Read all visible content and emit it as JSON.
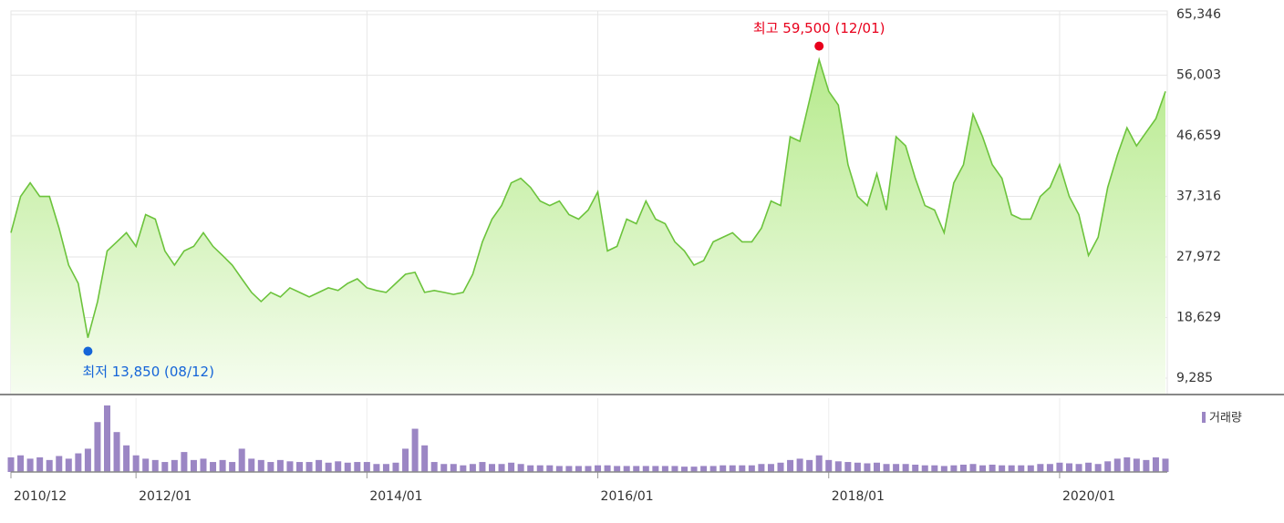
{
  "chart_data": [
    {
      "type": "area",
      "x": [
        "2010/12",
        "2011/01",
        "2011/02",
        "2011/03",
        "2011/04",
        "2011/05",
        "2011/06",
        "2011/07",
        "2011/08",
        "2011/09",
        "2011/10",
        "2011/11",
        "2011/12",
        "2012/01",
        "2012/02",
        "2012/03",
        "2012/04",
        "2012/05",
        "2012/06",
        "2012/07",
        "2012/08",
        "2012/09",
        "2012/10",
        "2012/11",
        "2012/12",
        "2013/01",
        "2013/02",
        "2013/03",
        "2013/04",
        "2013/05",
        "2013/06",
        "2013/07",
        "2013/08",
        "2013/09",
        "2013/10",
        "2013/11",
        "2013/12",
        "2014/01",
        "2014/02",
        "2014/03",
        "2014/04",
        "2014/05",
        "2014/06",
        "2014/07",
        "2014/08",
        "2014/09",
        "2014/10",
        "2014/11",
        "2014/12",
        "2015/01",
        "2015/02",
        "2015/03",
        "2015/04",
        "2015/05",
        "2015/06",
        "2015/07",
        "2015/08",
        "2015/09",
        "2015/10",
        "2015/11",
        "2015/12",
        "2016/01",
        "2016/02",
        "2016/03",
        "2016/04",
        "2016/05",
        "2016/06",
        "2016/07",
        "2016/08",
        "2016/09",
        "2016/10",
        "2016/11",
        "2016/12",
        "2017/01",
        "2017/02",
        "2017/03",
        "2017/04",
        "2017/05",
        "2017/06",
        "2017/07",
        "2017/08",
        "2017/09",
        "2017/10",
        "2017/11",
        "2017/12",
        "2018/01",
        "2018/02",
        "2018/03",
        "2018/04",
        "2018/05",
        "2018/06",
        "2018/07",
        "2018/08",
        "2018/09",
        "2018/10",
        "2018/11",
        "2018/12",
        "2019/01",
        "2019/02",
        "2019/03",
        "2019/04",
        "2019/05",
        "2019/06",
        "2019/07",
        "2019/08",
        "2019/09",
        "2019/10",
        "2019/11",
        "2019/12",
        "2020/01",
        "2020/02",
        "2020/03",
        "2020/04",
        "2020/05",
        "2020/06",
        "2020/07",
        "2020/08",
        "2020/09",
        "2020/10",
        "2020/11",
        "2020/12"
      ],
      "series": [
        {
          "color": "#6cc33c",
          "values": [
            31700,
            37300,
            39400,
            37300,
            37300,
            32400,
            26700,
            23900,
            15500,
            21100,
            28900,
            30300,
            31700,
            29600,
            34500,
            33800,
            28900,
            26700,
            28900,
            29600,
            31700,
            29600,
            28200,
            26700,
            24600,
            22500,
            21100,
            22500,
            21800,
            23200,
            22500,
            21800,
            22500,
            23200,
            22800,
            23900,
            24600,
            23200,
            22800,
            22500,
            23900,
            25300,
            25600,
            22500,
            22800,
            22500,
            22200,
            22500,
            25300,
            30300,
            33800,
            35900,
            39400,
            40100,
            38700,
            36600,
            35900,
            36600,
            34500,
            33800,
            35200,
            38000,
            28900,
            29600,
            33800,
            33100,
            36600,
            33800,
            33100,
            30300,
            28900,
            26700,
            27400,
            30300,
            31000,
            31700,
            30300,
            30300,
            32400,
            36600,
            35900,
            46500,
            45800,
            52100,
            58400,
            53500,
            51400,
            42200,
            37300,
            35900,
            40800,
            35200,
            46500,
            45100,
            40100,
            35900,
            35200,
            31700,
            39400,
            42200,
            50000,
            46500,
            42200,
            40100,
            34500,
            33800,
            33800,
            37300,
            38700,
            42200,
            37300,
            34500,
            28200,
            31000,
            38700,
            43700,
            47900,
            45100,
            47200,
            49300,
            53500
          ]
        }
      ],
      "ylim": [
        6750,
        65910
      ],
      "yticks": [
        {
          "value": 9285,
          "label": "9,285"
        },
        {
          "value": 18629,
          "label": "18,629"
        },
        {
          "value": 27972,
          "label": "27,972"
        },
        {
          "value": 37316,
          "label": "37,316"
        },
        {
          "value": 46659,
          "label": "46,659"
        },
        {
          "value": 56003,
          "label": "56,003"
        },
        {
          "value": 65346,
          "label": "65,346"
        }
      ],
      "xticks": [
        "2010/12",
        "2012/01",
        "2014/01",
        "2016/01",
        "2018/01",
        "2020/01"
      ],
      "grid": true,
      "annotations": [
        {
          "text": "최고 59,500 (12/01)",
          "x": "2017/12",
          "value": 59500,
          "color": "#e8001c",
          "position": "above"
        },
        {
          "text": "최저 13,850 (08/12)",
          "x": "2011/08",
          "value": 13850,
          "color": "#1565d8",
          "position": "below"
        }
      ]
    },
    {
      "type": "bar",
      "x": [
        "2010/12",
        "2011/01",
        "2011/02",
        "2011/03",
        "2011/04",
        "2011/05",
        "2011/06",
        "2011/07",
        "2011/08",
        "2011/09",
        "2011/10",
        "2011/11",
        "2011/12",
        "2012/01",
        "2012/02",
        "2012/03",
        "2012/04",
        "2012/05",
        "2012/06",
        "2012/07",
        "2012/08",
        "2012/09",
        "2012/10",
        "2012/11",
        "2012/12",
        "2013/01",
        "2013/02",
        "2013/03",
        "2013/04",
        "2013/05",
        "2013/06",
        "2013/07",
        "2013/08",
        "2013/09",
        "2013/10",
        "2013/11",
        "2013/12",
        "2014/01",
        "2014/02",
        "2014/03",
        "2014/04",
        "2014/05",
        "2014/06",
        "2014/07",
        "2014/08",
        "2014/09",
        "2014/10",
        "2014/11",
        "2014/12",
        "2015/01",
        "2015/02",
        "2015/03",
        "2015/04",
        "2015/05",
        "2015/06",
        "2015/07",
        "2015/08",
        "2015/09",
        "2015/10",
        "2015/11",
        "2015/12",
        "2016/01",
        "2016/02",
        "2016/03",
        "2016/04",
        "2016/05",
        "2016/06",
        "2016/07",
        "2016/08",
        "2016/09",
        "2016/10",
        "2016/11",
        "2016/12",
        "2017/01",
        "2017/02",
        "2017/03",
        "2017/04",
        "2017/05",
        "2017/06",
        "2017/07",
        "2017/08",
        "2017/09",
        "2017/10",
        "2017/11",
        "2017/12",
        "2018/01",
        "2018/02",
        "2018/03",
        "2018/04",
        "2018/05",
        "2018/06",
        "2018/07",
        "2018/08",
        "2018/09",
        "2018/10",
        "2018/11",
        "2018/12",
        "2019/01",
        "2019/02",
        "2019/03",
        "2019/04",
        "2019/05",
        "2019/06",
        "2019/07",
        "2019/08",
        "2019/09",
        "2019/10",
        "2019/11",
        "2019/12",
        "2020/01",
        "2020/02",
        "2020/03",
        "2020/04",
        "2020/05",
        "2020/06",
        "2020/07",
        "2020/08",
        "2020/09",
        "2020/10",
        "2020/11",
        "2020/12"
      ],
      "series": [
        {
          "name": "거래량",
          "color": "#9b86c4",
          "values": [
            22,
            25,
            20,
            22,
            18,
            24,
            20,
            28,
            35,
            75,
            100,
            60,
            40,
            25,
            20,
            18,
            15,
            18,
            30,
            18,
            20,
            15,
            18,
            15,
            35,
            20,
            18,
            15,
            18,
            16,
            15,
            15,
            18,
            14,
            16,
            14,
            15,
            15,
            12,
            12,
            14,
            35,
            65,
            40,
            15,
            12,
            12,
            10,
            12,
            15,
            12,
            12,
            14,
            12,
            10,
            10,
            10,
            9,
            9,
            9,
            9,
            10,
            10,
            9,
            9,
            9,
            9,
            9,
            9,
            9,
            8,
            8,
            9,
            9,
            10,
            10,
            10,
            10,
            12,
            12,
            14,
            18,
            20,
            18,
            25,
            18,
            16,
            15,
            14,
            13,
            14,
            12,
            12,
            12,
            11,
            10,
            10,
            9,
            10,
            11,
            12,
            10,
            11,
            10,
            10,
            10,
            10,
            12,
            12,
            14,
            13,
            12,
            14,
            12,
            16,
            20,
            22,
            20,
            18,
            22,
            20
          ]
        }
      ],
      "ylim": [
        0,
        100
      ],
      "legend": "top-right"
    }
  ]
}
